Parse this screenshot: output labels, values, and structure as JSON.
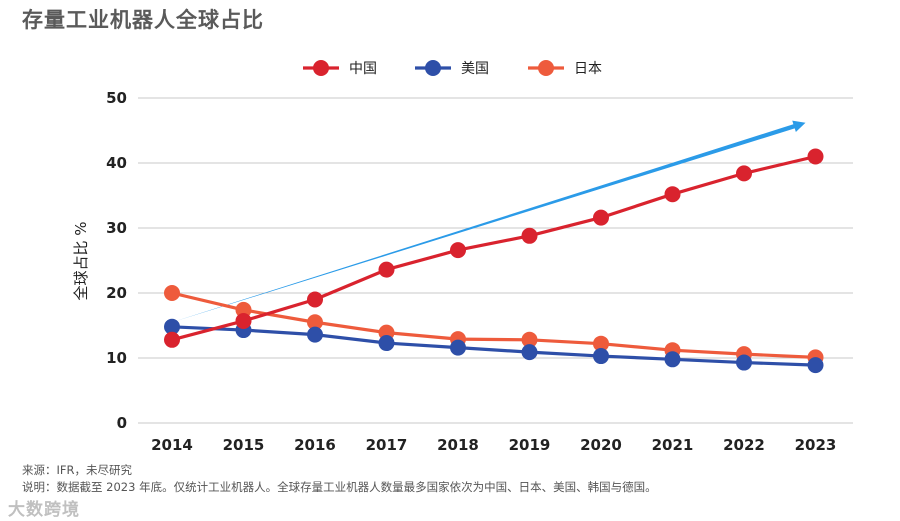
{
  "title": "存量工业机器人全球占比",
  "notes": {
    "source": "来源：IFR，未尽研究",
    "description": "说明：数据截至 2023 年底。仅统计工业机器人。全球存量工业机器人数量最多国家依次为中国、日本、美国、韩国与德国。"
  },
  "watermark": "大数跨境",
  "chart_data": {
    "type": "line",
    "title": "存量工业机器人全球占比",
    "xlabel": "",
    "ylabel": "全球占比 %",
    "ylim": [
      0,
      50
    ],
    "yticks": [
      0,
      10,
      20,
      30,
      40,
      50
    ],
    "grid": true,
    "legend_position": "top-center",
    "categories": [
      "2014",
      "2015",
      "2016",
      "2017",
      "2018",
      "2019",
      "2020",
      "2021",
      "2022",
      "2023"
    ],
    "series": [
      {
        "name": "中国",
        "color": "#d9232e",
        "values": [
          12.8,
          15.7,
          19.0,
          23.6,
          26.6,
          28.8,
          31.6,
          35.2,
          38.4,
          41.0
        ]
      },
      {
        "name": "美国",
        "color": "#2e4fa8",
        "values": [
          14.8,
          14.3,
          13.6,
          12.3,
          11.6,
          10.9,
          10.3,
          9.8,
          9.3,
          8.9
        ]
      },
      {
        "name": "日本",
        "color": "#ee5b3c",
        "values": [
          20.0,
          17.4,
          15.5,
          13.9,
          12.9,
          12.8,
          12.2,
          11.2,
          10.6,
          10.1
        ]
      }
    ],
    "trend_arrow": {
      "color": "#2b9be8",
      "from": {
        "x": "2014",
        "y": 15.5
      },
      "to": {
        "x": "2023",
        "y": 46.2
      }
    }
  }
}
